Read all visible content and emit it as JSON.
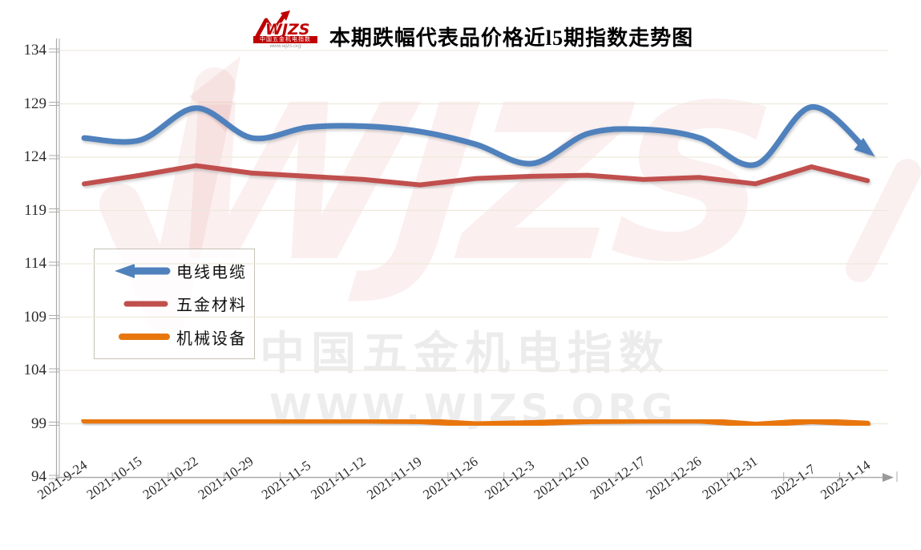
{
  "header": {
    "logo": {
      "brand": "WJZS",
      "subtitle": "中国五金机电指数",
      "url": "www.wjzs.org",
      "color": "#C00000"
    },
    "title": "本期跌幅代表品价格近l5期指数走势图"
  },
  "watermark": {
    "brand_text": "WJZS",
    "cn_text": "中国五金机电指数",
    "url_text": "WWW.WJZS.ORG"
  },
  "chart_data": {
    "type": "line",
    "title": "本期跌幅代表品价格近l5期指数走势图",
    "categories": [
      "2021-9-24",
      "2021-10-15",
      "2021-10-22",
      "2021-10-29",
      "2021-11-5",
      "2021-11-12",
      "2021-11-19",
      "2021-11-26",
      "2021-12-3",
      "2021-12-10",
      "2021-12-17",
      "2021-12-26",
      "2021-12-31",
      "2022-1-7",
      "2022-1-14"
    ],
    "series": [
      {
        "name": "电线电缆",
        "color": "#4F81BD",
        "style": "smooth-with-end-arrow",
        "values": [
          125.8,
          125.6,
          128.6,
          125.8,
          126.8,
          126.9,
          126.4,
          125.2,
          123.4,
          126.2,
          126.6,
          125.8,
          123.3,
          128.7,
          124.6
        ]
      },
      {
        "name": "五金材料",
        "color": "#C0504D",
        "style": "straight",
        "values": [
          121.5,
          122.3,
          123.2,
          122.5,
          122.2,
          121.9,
          121.4,
          122.0,
          122.2,
          122.3,
          121.9,
          122.1,
          121.5,
          123.1,
          121.8
        ]
      },
      {
        "name": "机械设备",
        "color": "#E8760D",
        "style": "straight",
        "values": [
          99.3,
          99.3,
          99.3,
          99.3,
          99.3,
          99.3,
          99.25,
          98.95,
          99.05,
          99.25,
          99.3,
          99.3,
          98.9,
          99.25,
          99.0
        ]
      }
    ],
    "ylim": [
      94,
      134
    ],
    "yticks": [
      94,
      99,
      104,
      109,
      114,
      119,
      124,
      129,
      134
    ],
    "grid": true,
    "legend_position": "middle-left",
    "axis_color": "#ABABAB",
    "grid_color": "#EDE9DC"
  }
}
